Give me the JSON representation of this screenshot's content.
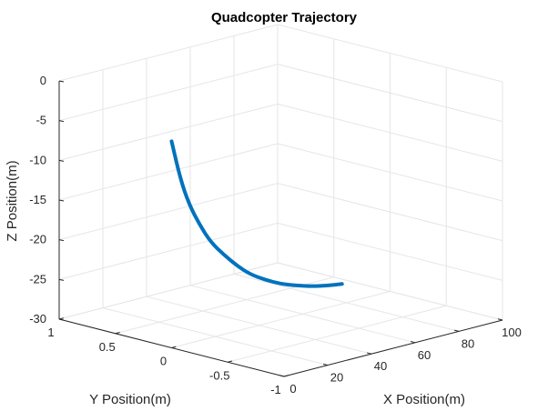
{
  "chart_data": {
    "type": "line",
    "title": "Quadcopter Trajectory",
    "xlabel": "X Position(m)",
    "ylabel": "Y Position(m)",
    "zlabel": "Z Position(m)",
    "xlim": [
      0,
      100
    ],
    "ylim": [
      -1,
      1
    ],
    "zlim": [
      -30,
      0
    ],
    "xticks": [
      0,
      20,
      40,
      60,
      80,
      100
    ],
    "xtick_labels": [
      "0",
      "20",
      "40",
      "60",
      "80",
      "100"
    ],
    "yticks": [
      1,
      0.5,
      0,
      -0.5,
      -1
    ],
    "ytick_labels": [
      "1",
      "0.5",
      "0",
      "-0.5",
      "-1"
    ],
    "zticks": [
      0,
      -5,
      -10,
      -15,
      -20,
      -25,
      -30
    ],
    "ztick_labels": [
      "0",
      "-5",
      "-10",
      "-15",
      "-20",
      "-25",
      "-30"
    ],
    "grid": true,
    "series": [
      {
        "color": "#0072bd",
        "x": [
          0,
          4,
          8,
          13,
          18,
          24,
          30,
          36,
          43,
          50,
          57,
          64,
          71,
          78
        ],
        "y": [
          0,
          0,
          0,
          0,
          0,
          0,
          0,
          0,
          0,
          0,
          0,
          0,
          0,
          0
        ],
        "z": [
          -4,
          -9,
          -12.5,
          -15.5,
          -18,
          -20,
          -21.8,
          -23.3,
          -24.5,
          -25.5,
          -26.2,
          -26.8,
          -27.2,
          -27.5
        ]
      }
    ]
  }
}
